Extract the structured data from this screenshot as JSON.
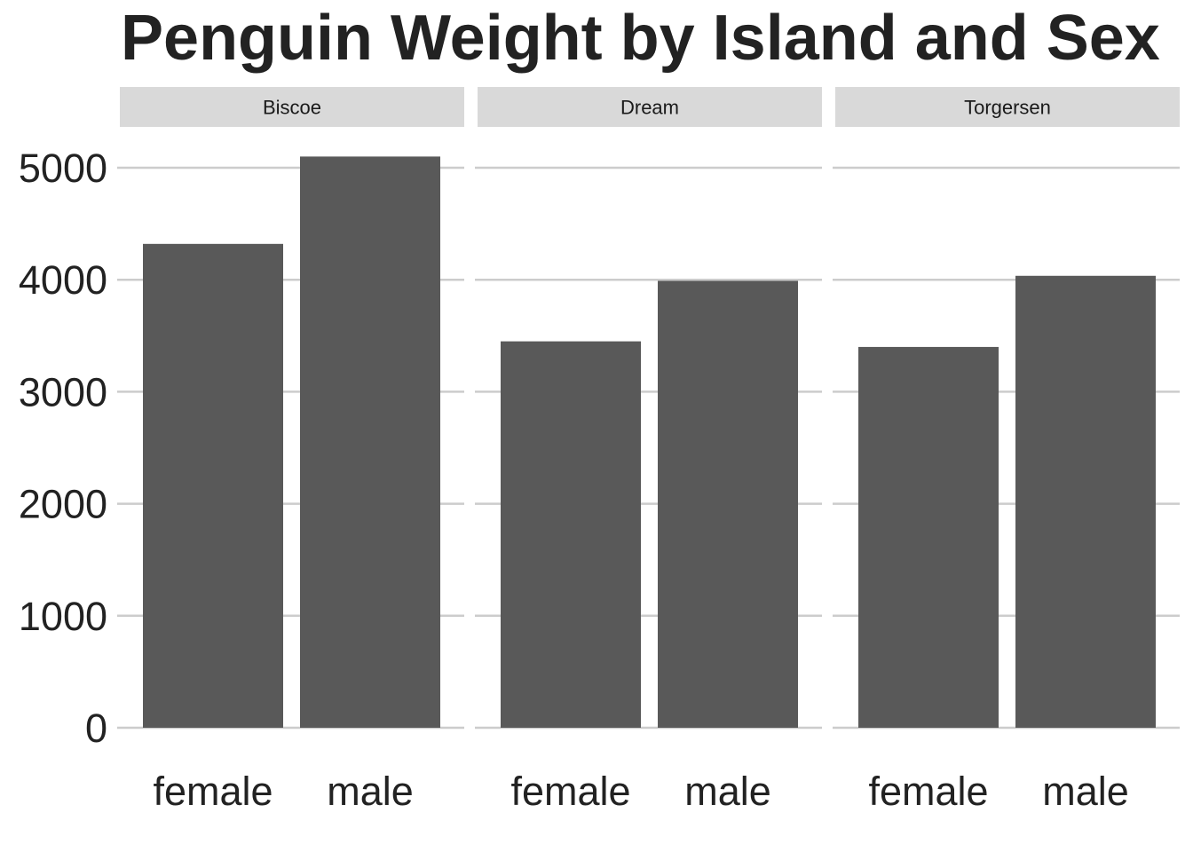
{
  "chart_data": {
    "type": "bar",
    "title": "Penguin Weight by Island and Sex",
    "xlabel": "",
    "ylabel": "",
    "ylim": [
      0,
      5000
    ],
    "yticks": [
      0,
      1000,
      2000,
      3000,
      4000,
      5000
    ],
    "grid": true,
    "facets": [
      {
        "name": "Biscoe",
        "categories": [
          "female",
          "male"
        ],
        "values": [
          4320,
          5100
        ]
      },
      {
        "name": "Dream",
        "categories": [
          "female",
          "male"
        ],
        "values": [
          3450,
          3990
        ]
      },
      {
        "name": "Torgersen",
        "categories": [
          "female",
          "male"
        ],
        "values": [
          3400,
          4035
        ]
      }
    ],
    "colors": {
      "bar": "#595959",
      "strip": "#d9d9d9",
      "grid": "#cccccc"
    }
  }
}
